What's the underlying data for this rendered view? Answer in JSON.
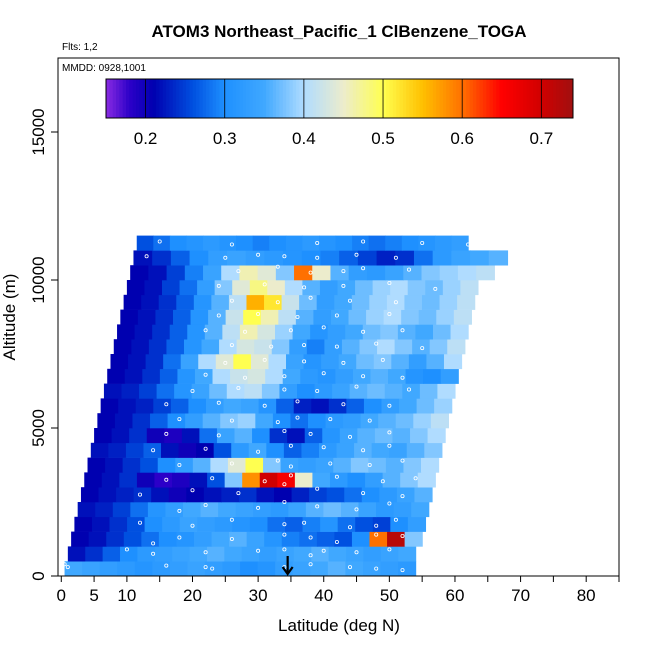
{
  "chart_data": {
    "type": "heatmap",
    "title": "ATOM3 Northeast_Pacific_1 ClBenzene_TOGA",
    "flights_label": "Flts: 1,2",
    "dates_label": "MMDD: 0928,1001",
    "xlabel": "Latitude (deg N)",
    "ylabel": "Altitude (m)",
    "xlim": [
      -0.5,
      85
    ],
    "ylim": [
      0,
      17500
    ],
    "x_ticks": [
      0,
      5,
      10,
      20,
      30,
      40,
      50,
      60,
      70,
      80
    ],
    "x_minor_ticks": [
      15,
      25,
      35,
      45,
      55,
      65,
      75,
      85
    ],
    "y_ticks": [
      0,
      5000,
      10000,
      15000
    ],
    "colorbar": {
      "ticks": [
        0.2,
        0.3,
        0.4,
        0.5,
        0.6,
        0.7
      ],
      "range": [
        0.15,
        0.74
      ],
      "stops": [
        {
          "v": 0.15,
          "c": "#8a2be2"
        },
        {
          "v": 0.18,
          "c": "#2c00c8"
        },
        {
          "v": 0.21,
          "c": "#0000b0"
        },
        {
          "v": 0.26,
          "c": "#0050e0"
        },
        {
          "v": 0.3,
          "c": "#1e90ff"
        },
        {
          "v": 0.35,
          "c": "#40a8ff"
        },
        {
          "v": 0.4,
          "c": "#b0dcff"
        },
        {
          "v": 0.45,
          "c": "#ececcc"
        },
        {
          "v": 0.5,
          "c": "#ffff50"
        },
        {
          "v": 0.55,
          "c": "#ffc000"
        },
        {
          "v": 0.6,
          "c": "#ff7000"
        },
        {
          "v": 0.65,
          "c": "#ff0000"
        },
        {
          "v": 0.7,
          "c": "#d00000"
        },
        {
          "v": 0.74,
          "c": "#a01010"
        }
      ]
    },
    "arrow_latitude": 34.5,
    "altitude_bins": [
      {
        "alt": 250,
        "x0": 0.5,
        "x1": 54,
        "vals": [
          0.35,
          0.34,
          0.33,
          0.32,
          0.31,
          0.32,
          0.33,
          0.34,
          0.33,
          0.32,
          0.3,
          0.31,
          0.33,
          0.34,
          0.35,
          0.36,
          0.35,
          0.34,
          0.33,
          0.32
        ]
      },
      {
        "alt": 750,
        "x0": 1.0,
        "x1": 54,
        "vals": [
          0.22,
          0.24,
          0.27,
          0.3,
          0.32,
          0.33,
          0.34,
          0.35,
          0.36,
          0.35,
          0.34,
          0.33,
          0.34,
          0.35,
          0.36,
          0.35,
          0.34,
          0.33,
          0.34,
          0.35
        ]
      },
      {
        "alt": 1250,
        "x0": 1.5,
        "x1": 55,
        "vals": [
          0.21,
          0.22,
          0.24,
          0.26,
          0.28,
          0.3,
          0.31,
          0.33,
          0.35,
          0.36,
          0.34,
          0.31,
          0.29,
          0.28,
          0.27,
          0.26,
          0.3,
          0.6,
          0.72,
          0.38
        ]
      },
      {
        "alt": 1750,
        "x0": 2.0,
        "x1": 55.5,
        "vals": [
          0.21,
          0.22,
          0.24,
          0.26,
          0.3,
          0.32,
          0.34,
          0.33,
          0.32,
          0.31,
          0.3,
          0.28,
          0.27,
          0.29,
          0.31,
          0.28,
          0.26,
          0.25,
          0.3,
          0.33
        ]
      },
      {
        "alt": 2250,
        "x0": 2.5,
        "x1": 56,
        "vals": [
          0.22,
          0.23,
          0.25,
          0.28,
          0.31,
          0.33,
          0.35,
          0.36,
          0.35,
          0.34,
          0.33,
          0.32,
          0.34,
          0.36,
          0.37,
          0.36,
          0.34,
          0.32,
          0.33,
          0.35
        ]
      },
      {
        "alt": 2750,
        "x0": 3.0,
        "x1": 56.5,
        "vals": [
          0.21,
          0.22,
          0.23,
          0.24,
          0.22,
          0.2,
          0.21,
          0.22,
          0.23,
          0.24,
          0.22,
          0.21,
          0.23,
          0.25,
          0.26,
          0.28,
          0.3,
          0.32,
          0.34,
          0.36
        ]
      },
      {
        "alt": 3250,
        "x0": 3.5,
        "x1": 57,
        "vals": [
          0.21,
          0.22,
          0.24,
          0.2,
          0.18,
          0.19,
          0.22,
          0.26,
          0.38,
          0.58,
          0.7,
          0.66,
          0.45,
          0.35,
          0.32,
          0.3,
          0.33,
          0.36,
          0.38,
          0.4
        ]
      },
      {
        "alt": 3750,
        "x0": 4.0,
        "x1": 57.5,
        "vals": [
          0.21,
          0.22,
          0.24,
          0.26,
          0.3,
          0.33,
          0.36,
          0.4,
          0.44,
          0.5,
          0.38,
          0.34,
          0.33,
          0.34,
          0.36,
          0.38,
          0.37,
          0.36,
          0.38,
          0.4
        ]
      },
      {
        "alt": 4250,
        "x0": 4.5,
        "x1": 58,
        "vals": [
          0.22,
          0.23,
          0.25,
          0.27,
          0.22,
          0.2,
          0.21,
          0.26,
          0.32,
          0.35,
          0.3,
          0.27,
          0.29,
          0.32,
          0.34,
          0.36,
          0.35,
          0.34,
          0.36,
          0.38
        ]
      },
      {
        "alt": 4750,
        "x0": 5.0,
        "x1": 58.5,
        "vals": [
          0.21,
          0.22,
          0.24,
          0.2,
          0.19,
          0.22,
          0.28,
          0.34,
          0.36,
          0.3,
          0.24,
          0.22,
          0.27,
          0.31,
          0.34,
          0.36,
          0.37,
          0.36,
          0.38,
          0.4
        ]
      },
      {
        "alt": 5250,
        "x0": 5.5,
        "x1": 59,
        "vals": [
          0.21,
          0.22,
          0.24,
          0.27,
          0.3,
          0.33,
          0.36,
          0.38,
          0.39,
          0.35,
          0.3,
          0.28,
          0.3,
          0.32,
          0.33,
          0.35,
          0.36,
          0.37,
          0.39,
          0.41
        ]
      },
      {
        "alt": 5750,
        "x0": 6.0,
        "x1": 59.5,
        "vals": [
          0.21,
          0.22,
          0.23,
          0.25,
          0.27,
          0.3,
          0.33,
          0.35,
          0.34,
          0.31,
          0.27,
          0.23,
          0.22,
          0.24,
          0.27,
          0.3,
          0.33,
          0.35,
          0.37,
          0.39
        ]
      },
      {
        "alt": 6250,
        "x0": 6.5,
        "x1": 60,
        "vals": [
          0.22,
          0.23,
          0.25,
          0.28,
          0.31,
          0.34,
          0.37,
          0.4,
          0.41,
          0.38,
          0.33,
          0.3,
          0.32,
          0.34,
          0.36,
          0.37,
          0.36,
          0.35,
          0.37,
          0.4
        ]
      },
      {
        "alt": 6750,
        "x0": 7.0,
        "x1": 60.5,
        "vals": [
          0.21,
          0.22,
          0.24,
          0.27,
          0.31,
          0.35,
          0.4,
          0.42,
          0.43,
          0.4,
          0.35,
          0.32,
          0.31,
          0.33,
          0.35,
          0.36,
          0.35,
          0.31,
          0.3,
          0.33
        ]
      },
      {
        "alt": 7250,
        "x0": 7.5,
        "x1": 61,
        "vals": [
          0.21,
          0.22,
          0.24,
          0.28,
          0.34,
          0.4,
          0.44,
          0.5,
          0.44,
          0.4,
          0.34,
          0.31,
          0.33,
          0.35,
          0.37,
          0.38,
          0.36,
          0.33,
          0.36,
          0.4
        ]
      },
      {
        "alt": 7750,
        "x0": 8.0,
        "x1": 61.5,
        "vals": [
          0.21,
          0.22,
          0.24,
          0.27,
          0.31,
          0.35,
          0.4,
          0.43,
          0.42,
          0.38,
          0.33,
          0.29,
          0.33,
          0.36,
          0.38,
          0.4,
          0.38,
          0.36,
          0.38,
          0.41
        ]
      },
      {
        "alt": 8250,
        "x0": 8.5,
        "x1": 62,
        "vals": [
          0.21,
          0.22,
          0.24,
          0.27,
          0.31,
          0.36,
          0.41,
          0.46,
          0.43,
          0.39,
          0.35,
          0.31,
          0.33,
          0.35,
          0.37,
          0.38,
          0.36,
          0.35,
          0.37,
          0.4
        ]
      },
      {
        "alt": 8750,
        "x0": 9.0,
        "x1": 62.5,
        "vals": [
          0.21,
          0.22,
          0.24,
          0.27,
          0.31,
          0.36,
          0.42,
          0.5,
          0.46,
          0.41,
          0.36,
          0.33,
          0.35,
          0.37,
          0.39,
          0.4,
          0.38,
          0.37,
          0.39,
          0.41
        ]
      },
      {
        "alt": 9250,
        "x0": 9.5,
        "x1": 63,
        "vals": [
          0.21,
          0.22,
          0.24,
          0.27,
          0.31,
          0.36,
          0.41,
          0.56,
          0.52,
          0.42,
          0.37,
          0.33,
          0.35,
          0.37,
          0.39,
          0.4,
          0.38,
          0.37,
          0.39,
          0.41
        ]
      },
      {
        "alt": 9750,
        "x0": 10.0,
        "x1": 63.5,
        "vals": [
          0.21,
          0.22,
          0.25,
          0.28,
          0.33,
          0.38,
          0.44,
          0.48,
          0.45,
          0.4,
          0.36,
          0.33,
          0.35,
          0.37,
          0.39,
          0.4,
          0.38,
          0.37,
          0.39,
          0.41
        ]
      },
      {
        "alt": 10250,
        "x0": 10.5,
        "x1": 66,
        "vals": [
          0.21,
          0.22,
          0.25,
          0.29,
          0.34,
          0.4,
          0.46,
          0.44,
          0.38,
          0.6,
          0.45,
          0.36,
          0.33,
          0.32,
          0.34,
          0.36,
          0.38,
          0.39,
          0.4,
          0.41
        ]
      },
      {
        "alt": 10750,
        "x0": 11.0,
        "x1": 68,
        "vals": [
          0.22,
          0.24,
          0.27,
          0.3,
          0.33,
          0.34,
          0.33,
          0.32,
          0.31,
          0.3,
          0.29,
          0.27,
          0.25,
          0.23,
          0.24,
          0.28,
          0.32,
          0.34,
          0.35,
          0.36
        ]
      },
      {
        "alt": 11250,
        "x0": 11.5,
        "x1": 62,
        "vals": [
          0.26,
          0.28,
          0.3,
          0.31,
          0.32,
          0.31,
          0.3,
          0.29,
          0.3,
          0.31,
          0.32,
          0.31,
          0.3,
          0.29,
          0.28,
          0.29,
          0.3,
          0.31,
          0.32,
          0.33
        ]
      }
    ],
    "sample_points": [
      [
        0.5,
        400
      ],
      [
        1,
        300
      ],
      [
        16,
        350
      ],
      [
        22,
        300
      ],
      [
        23,
        250
      ],
      [
        34,
        300
      ],
      [
        38,
        400
      ],
      [
        44,
        300
      ],
      [
        48,
        250
      ],
      [
        52,
        200
      ],
      [
        10,
        900
      ],
      [
        14,
        750
      ],
      [
        22,
        800
      ],
      [
        30,
        850
      ],
      [
        34,
        900
      ],
      [
        38,
        700
      ],
      [
        40,
        850
      ],
      [
        45,
        800
      ],
      [
        50,
        900
      ],
      [
        14,
        1100
      ],
      [
        18,
        1300
      ],
      [
        26,
        1250
      ],
      [
        34,
        1400
      ],
      [
        38,
        1300
      ],
      [
        42,
        1150
      ],
      [
        48,
        1400
      ],
      [
        52,
        1350
      ],
      [
        12,
        1800
      ],
      [
        20,
        1700
      ],
      [
        26,
        1900
      ],
      [
        34,
        1750
      ],
      [
        37,
        1800
      ],
      [
        44,
        1650
      ],
      [
        48,
        1700
      ],
      [
        51,
        1900
      ],
      [
        18,
        2200
      ],
      [
        22,
        2400
      ],
      [
        30,
        2300
      ],
      [
        34,
        2500
      ],
      [
        39,
        2350
      ],
      [
        45,
        2250
      ],
      [
        50,
        2450
      ],
      [
        12,
        2750
      ],
      [
        20,
        2900
      ],
      [
        27,
        2800
      ],
      [
        34,
        3100
      ],
      [
        39,
        2950
      ],
      [
        46,
        2800
      ],
      [
        52,
        2700
      ],
      [
        16,
        3250
      ],
      [
        23,
        3300
      ],
      [
        31,
        3200
      ],
      [
        35,
        3400
      ],
      [
        42,
        3350
      ],
      [
        49,
        3200
      ],
      [
        54,
        3300
      ],
      [
        18,
        3750
      ],
      [
        26,
        3800
      ],
      [
        33,
        3900
      ],
      [
        35,
        3700
      ],
      [
        41,
        3800
      ],
      [
        47,
        3750
      ],
      [
        52,
        3900
      ],
      [
        14,
        4250
      ],
      [
        22,
        4300
      ],
      [
        30,
        4200
      ],
      [
        35,
        4400
      ],
      [
        40,
        4350
      ],
      [
        46,
        4250
      ],
      [
        50,
        4400
      ],
      [
        16,
        4800
      ],
      [
        24,
        4750
      ],
      [
        34,
        4900
      ],
      [
        38,
        4800
      ],
      [
        44,
        4700
      ],
      [
        50,
        4850
      ],
      [
        18,
        5300
      ],
      [
        26,
        5250
      ],
      [
        33,
        5200
      ],
      [
        36,
        5350
      ],
      [
        41,
        5300
      ],
      [
        47,
        5250
      ],
      [
        16,
        5800
      ],
      [
        24,
        5850
      ],
      [
        31,
        5750
      ],
      [
        36,
        5900
      ],
      [
        43,
        5800
      ],
      [
        50,
        5750
      ],
      [
        20,
        6250
      ],
      [
        27,
        6350
      ],
      [
        34,
        6300
      ],
      [
        39,
        6250
      ],
      [
        45,
        6400
      ],
      [
        53,
        6300
      ],
      [
        22,
        6800
      ],
      [
        28,
        6700
      ],
      [
        34,
        6750
      ],
      [
        40,
        6850
      ],
      [
        46,
        6750
      ],
      [
        52,
        6700
      ],
      [
        25,
        7200
      ],
      [
        31,
        7300
      ],
      [
        37,
        7250
      ],
      [
        43,
        7200
      ],
      [
        49,
        7300
      ],
      [
        26,
        7800
      ],
      [
        32,
        7750
      ],
      [
        37,
        7800
      ],
      [
        42,
        7750
      ],
      [
        48,
        7850
      ],
      [
        55,
        7700
      ],
      [
        22,
        8300
      ],
      [
        28,
        8250
      ],
      [
        35,
        8300
      ],
      [
        40,
        8400
      ],
      [
        46,
        8250
      ],
      [
        52,
        8300
      ],
      [
        24,
        8800
      ],
      [
        30,
        8850
      ],
      [
        36,
        8750
      ],
      [
        42,
        8800
      ],
      [
        50,
        8850
      ],
      [
        26,
        9300
      ],
      [
        33,
        9250
      ],
      [
        38,
        9400
      ],
      [
        44,
        9300
      ],
      [
        51,
        9250
      ],
      [
        24,
        9800
      ],
      [
        31,
        9850
      ],
      [
        37,
        9750
      ],
      [
        43,
        9800
      ],
      [
        50,
        9900
      ],
      [
        57,
        9700
      ],
      [
        27,
        10300
      ],
      [
        33,
        10450
      ],
      [
        38,
        10250
      ],
      [
        43,
        10300
      ],
      [
        46,
        10400
      ],
      [
        53,
        10350
      ],
      [
        13,
        10800
      ],
      [
        25,
        10750
      ],
      [
        30,
        10850
      ],
      [
        34,
        10800
      ],
      [
        39,
        10750
      ],
      [
        45,
        10850
      ],
      [
        51,
        10750
      ],
      [
        15,
        11300
      ],
      [
        26,
        11200
      ],
      [
        39,
        11250
      ],
      [
        46,
        11300
      ],
      [
        55,
        11250
      ],
      [
        62,
        11200
      ]
    ]
  }
}
